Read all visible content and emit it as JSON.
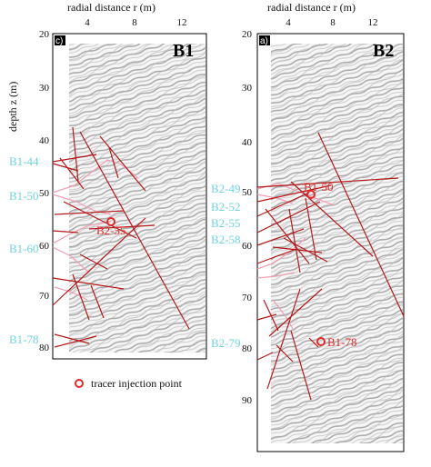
{
  "figure": {
    "legend": {
      "label": "tracer injection point"
    }
  },
  "panels": [
    {
      "id": "left",
      "tag": "c)",
      "title": "B1",
      "xlabel": "radial distance r (m)",
      "ylabel": "depth z (m)",
      "xticks": [
        "4",
        "8",
        "12"
      ],
      "yticks": [
        "20",
        "30",
        "40",
        "50",
        "60",
        "70",
        "80"
      ],
      "fracture_labels": [
        "B1-44",
        "B1-50",
        "B1-60",
        "B1-78"
      ],
      "injection_points": [
        {
          "label": "B2-55"
        }
      ]
    },
    {
      "id": "right",
      "tag": "a)",
      "title": "B2",
      "xlabel": "radial distance r (m)",
      "xticks": [
        "4",
        "8",
        "12"
      ],
      "yticks": [
        "20",
        "30",
        "40",
        "50",
        "60",
        "70",
        "80",
        "90"
      ],
      "fracture_labels": [
        "B2-49",
        "B2-52",
        "B2-55",
        "B2-58",
        "B2-79"
      ],
      "injection_points": [
        {
          "label": "B1-50"
        },
        {
          "label": "B1-78"
        }
      ]
    }
  ],
  "colors": {
    "fracture_red": "#b3191b",
    "fracture_pink": "#f0a0b4",
    "label_cyan": "#6fd3e0",
    "injection_red": "#e22a2a",
    "radar_stripe": "#9a9a9a"
  }
}
